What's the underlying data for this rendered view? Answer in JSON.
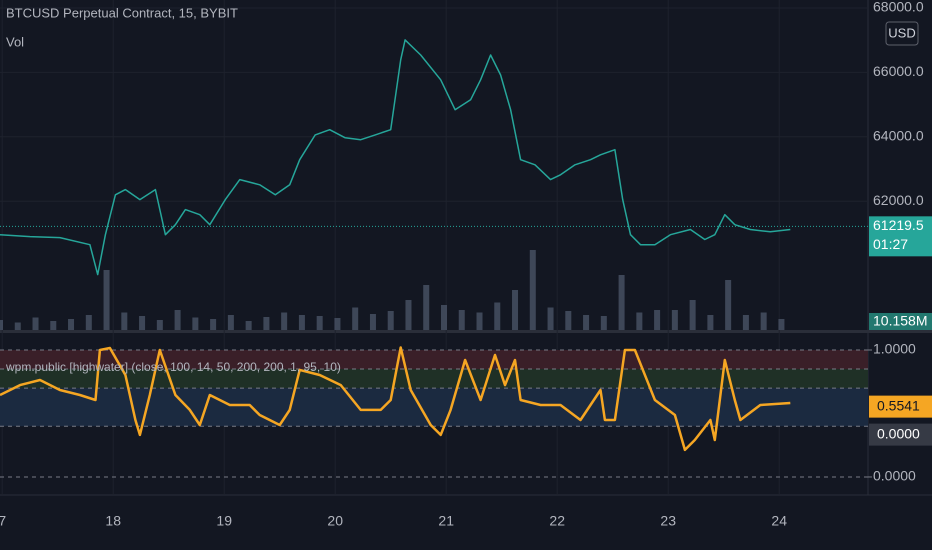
{
  "chart_data": [
    {
      "type": "line",
      "title": "BTCUSD Perpetual Contract, 15, BYBIT",
      "currency": "USD",
      "color": "#26a69a",
      "x": [
        16.98,
        17.25,
        17.52,
        17.79,
        17.86,
        17.93,
        18.02,
        18.11,
        18.24,
        18.38,
        18.47,
        18.56,
        18.65,
        18.78,
        18.87,
        19.01,
        19.14,
        19.32,
        19.46,
        19.59,
        19.68,
        19.82,
        19.95,
        20.09,
        20.23,
        20.36,
        20.5,
        20.59,
        20.63,
        20.77,
        20.95,
        21.08,
        21.22,
        21.31,
        21.4,
        21.49,
        21.58,
        21.67,
        21.8,
        21.94,
        22.03,
        22.16,
        22.3,
        22.39,
        22.52,
        22.59,
        22.66,
        22.75,
        22.88,
        23.02,
        23.2,
        23.33,
        23.42,
        23.51,
        23.6,
        23.74,
        23.92,
        24.1
      ],
      "values": [
        60960,
        60900,
        60870,
        60650,
        59720,
        60960,
        62200,
        62360,
        62050,
        62360,
        60960,
        61270,
        61740,
        61580,
        61270,
        62050,
        62670,
        62510,
        62200,
        62510,
        63290,
        64060,
        64220,
        63970,
        63910,
        64060,
        64220,
        66390,
        67010,
        66540,
        65770,
        64840,
        65150,
        65770,
        66540,
        65920,
        64840,
        63290,
        63130,
        62670,
        62820,
        63130,
        63290,
        63440,
        63600,
        62050,
        60960,
        60650,
        60650,
        60960,
        61120,
        60810,
        60960,
        61580,
        61270,
        61120,
        61050,
        61120
      ],
      "xlim": [
        16.98,
        24.8
      ],
      "ylim": [
        58000,
        68248
      ],
      "yticks": [
        {
          "value": 68000,
          "label": "68000.0"
        },
        {
          "value": 66000,
          "label": "66000.0"
        },
        {
          "value": 64000,
          "label": "64000.0"
        },
        {
          "value": 62000,
          "label": "62000.0"
        }
      ],
      "last_price": 61219.5,
      "countdown": "01:27",
      "grid": true
    },
    {
      "type": "bar",
      "title": "Vol",
      "color": "#4a5466",
      "x": [
        16.98,
        17.14,
        17.3,
        17.46,
        17.62,
        17.78,
        17.94,
        18.1,
        18.26,
        18.42,
        18.58,
        18.74,
        18.9,
        19.06,
        19.22,
        19.38,
        19.54,
        19.7,
        19.86,
        20.02,
        20.18,
        20.34,
        20.5,
        20.66,
        20.82,
        20.98,
        21.14,
        21.3,
        21.46,
        21.62,
        21.78,
        21.94,
        22.1,
        22.26,
        22.42,
        22.58,
        22.74,
        22.9,
        23.06,
        23.22,
        23.38,
        23.54,
        23.7,
        23.86,
        24.02
      ],
      "values": [
        20,
        15,
        25,
        18,
        22,
        30,
        120,
        35,
        28,
        20,
        40,
        25,
        22,
        30,
        18,
        26,
        35,
        30,
        28,
        24,
        45,
        32,
        38,
        60,
        90,
        50,
        40,
        35,
        55,
        80,
        160,
        45,
        38,
        30,
        28,
        110,
        35,
        40,
        40,
        60,
        30,
        100,
        30,
        35,
        22
      ],
      "xlim": [
        16.98,
        24.8
      ],
      "ylim": [
        0,
        400
      ],
      "last_value": {
        "value": 10.158,
        "label": "10.158M"
      }
    },
    {
      "type": "line",
      "title": "wpm.public [highwater] (close, 100, 14, 50, 200, 200, 1, 95, 10)",
      "color": "#f5a623",
      "x": [
        16.98,
        17.16,
        17.34,
        17.52,
        17.7,
        17.84,
        17.88,
        17.97,
        18.11,
        18.2,
        18.24,
        18.33,
        18.42,
        18.56,
        18.69,
        18.78,
        18.87,
        19.05,
        19.23,
        19.32,
        19.5,
        19.59,
        19.68,
        19.86,
        20.05,
        20.23,
        20.41,
        20.5,
        20.59,
        20.68,
        20.86,
        20.95,
        21.04,
        21.17,
        21.31,
        21.44,
        21.53,
        21.62,
        21.67,
        21.85,
        22.03,
        22.21,
        22.39,
        22.43,
        22.52,
        22.61,
        22.7,
        22.88,
        23.06,
        23.15,
        23.24,
        23.38,
        23.42,
        23.51,
        23.6,
        23.65,
        23.83,
        24.1
      ],
      "values": [
        0.646,
        0.724,
        0.764,
        0.685,
        0.646,
        0.606,
        1.0,
        1.016,
        0.803,
        0.449,
        0.331,
        0.646,
        1.0,
        0.646,
        0.528,
        0.409,
        0.646,
        0.567,
        0.567,
        0.488,
        0.409,
        0.528,
        0.843,
        0.803,
        0.724,
        0.528,
        0.528,
        0.606,
        1.02,
        0.685,
        0.409,
        0.331,
        0.528,
        0.921,
        0.606,
        0.961,
        0.724,
        0.921,
        0.606,
        0.567,
        0.567,
        0.449,
        0.685,
        0.449,
        0.449,
        1.0,
        1.0,
        0.606,
        0.488,
        0.213,
        0.291,
        0.449,
        0.291,
        0.921,
        0.606,
        0.449,
        0.567,
        0.583
      ],
      "xlim": [
        16.98,
        24.8
      ],
      "ylim": [
        -0.142,
        1.134
      ],
      "yticks": [
        {
          "value": 1,
          "label": "1.0000"
        },
        {
          "value": 0,
          "label": "0.0000"
        }
      ],
      "levels": [
        1,
        0.85,
        0.7,
        0.4,
        0
      ],
      "bands": [
        {
          "from": 1,
          "to": 0.85,
          "color": "#3a1f28"
        },
        {
          "from": 0.85,
          "to": 0.7,
          "color": "#1f3026"
        },
        {
          "from": 0.7,
          "to": 0.4,
          "color": "#1b2a40"
        }
      ],
      "last_value": 0.5541,
      "second_value": {
        "value": 0,
        "label": "0.0000"
      },
      "xticks": [
        {
          "value": 17,
          "label": "7"
        },
        18,
        19,
        20,
        21,
        22,
        23,
        24
      ]
    }
  ]
}
